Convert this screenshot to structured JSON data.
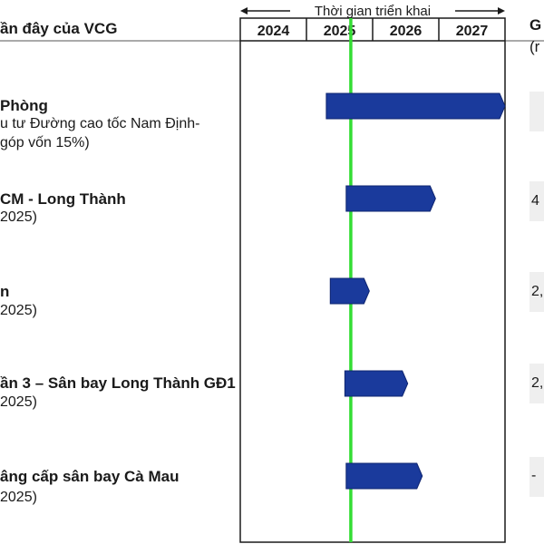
{
  "left_header": "ần đây của VCG",
  "right_header": {
    "line1": "G",
    "line2": "(r"
  },
  "timeline_title": "Thời gian triển khai",
  "projects": [
    {
      "name": "Phòng",
      "subtitle": "u tư Đường cao tốc Nam Định-",
      "subtitle2": "góp vốn 15%)",
      "value": ""
    },
    {
      "name": "CM - Long Thành",
      "subtitle": "2025)",
      "subtitle2": "",
      "value": "4"
    },
    {
      "name": "n",
      "subtitle": "2025)",
      "subtitle2": "",
      "value": "2,"
    },
    {
      "name": "ần 3 – Sân bay Long Thành GĐ1",
      "subtitle": "2025)",
      "subtitle2": "",
      "value": "2,"
    },
    {
      "name": "âng cấp sân bay Cà Mau",
      "subtitle": "2025)",
      "subtitle2": "",
      "value": "-"
    }
  ],
  "chart_data": {
    "type": "gantt",
    "title": "Thời gian triển khai",
    "categories": [
      "2024",
      "2025",
      "2026",
      "2027"
    ],
    "xlim": [
      2024.0,
      2028.0
    ],
    "current_marker": 2025.67,
    "marker_color": "#33dd33",
    "bar_color": "#1a3a9c",
    "bars": [
      {
        "start": 2025.3,
        "end": 2028.0
      },
      {
        "start": 2025.6,
        "end": 2026.95
      },
      {
        "start": 2025.36,
        "end": 2025.95
      },
      {
        "start": 2025.58,
        "end": 2026.53
      },
      {
        "start": 2025.6,
        "end": 2026.75
      }
    ]
  }
}
